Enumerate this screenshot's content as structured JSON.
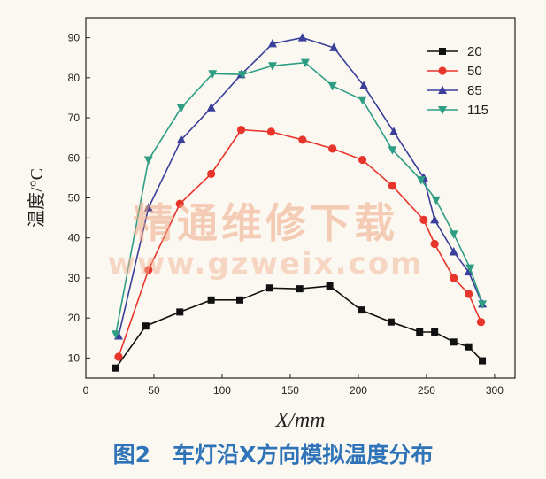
{
  "chart_data": {
    "type": "line",
    "xlabel": "X/mm",
    "ylabel": "温度/°C",
    "xlim": [
      0,
      315
    ],
    "ylim": [
      5,
      95
    ],
    "xticks": [
      0,
      50,
      100,
      150,
      200,
      250,
      300
    ],
    "yticks": [
      10,
      20,
      30,
      40,
      50,
      60,
      70,
      80,
      90
    ],
    "legend_position": "top-right",
    "series": [
      {
        "name": "20",
        "color": "#111111",
        "marker": "square",
        "x": [
          22,
          44,
          69,
          92,
          113,
          135,
          157,
          179,
          202,
          224,
          245,
          256,
          270,
          281,
          291
        ],
        "y": [
          7.5,
          18,
          21.5,
          24.5,
          24.5,
          27.5,
          27.3,
          28,
          22,
          19,
          16.5,
          16.5,
          14,
          12.8,
          9.3
        ]
      },
      {
        "name": "50",
        "color": "#e8352b",
        "marker": "circle",
        "x": [
          24,
          46,
          69,
          92,
          114,
          136,
          159,
          181,
          203,
          225,
          248,
          256,
          270,
          281,
          290
        ],
        "y": [
          10.3,
          32,
          48.5,
          56,
          67,
          66.5,
          64.5,
          62.3,
          59.5,
          53,
          44.5,
          38.5,
          30,
          26,
          19
        ]
      },
      {
        "name": "85",
        "color": "#3a3f9a",
        "marker": "triangle-up",
        "x": [
          24,
          46,
          70,
          92,
          114,
          137,
          159,
          182,
          204,
          226,
          248,
          256,
          270,
          281,
          291
        ],
        "y": [
          15.5,
          47.5,
          64.5,
          72.5,
          80.8,
          88.5,
          90,
          87.5,
          78,
          66.5,
          55,
          44.5,
          36.5,
          31.5,
          23.5
        ]
      },
      {
        "name": "115",
        "color": "#2e9d84",
        "marker": "triangle-down",
        "x": [
          22,
          46,
          70,
          93,
          115,
          137,
          161,
          181,
          203,
          225,
          246,
          257,
          270,
          282,
          291
        ],
        "y": [
          16,
          59.5,
          72.5,
          81,
          80.8,
          83,
          83.8,
          78,
          74.5,
          62,
          54.5,
          49.5,
          41,
          32.5,
          23.5
        ]
      }
    ]
  },
  "watermark": {
    "text": "精通维修下载",
    "url": "www.gzweix.com"
  },
  "caption": "图2　车灯沿X方向模拟温度分布"
}
